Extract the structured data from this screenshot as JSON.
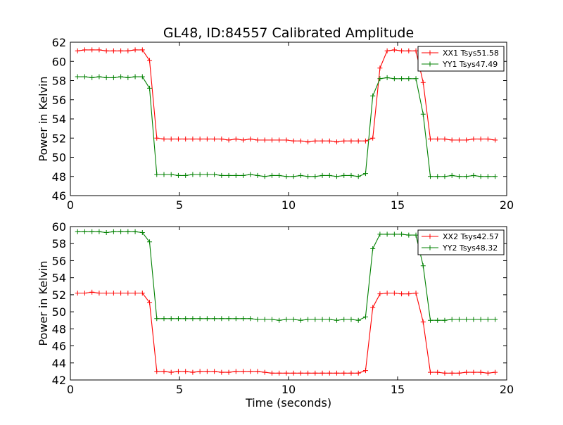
{
  "figure": {
    "title": "GL48, ID:84557 Calibrated Amplitude",
    "xlabel": "Time (seconds)"
  },
  "chart_data": [
    {
      "type": "line",
      "title": "GL48, ID:84557 Calibrated Amplitude",
      "xlabel": "",
      "ylabel": "Power in Kelvin",
      "xlim": [
        0,
        20
      ],
      "ylim": [
        46,
        62
      ],
      "xticks": [
        0,
        5,
        10,
        15,
        20
      ],
      "yticks": [
        46,
        48,
        50,
        52,
        54,
        56,
        58,
        60,
        62
      ],
      "grid": false,
      "legend": "top-right",
      "x": [
        0.33,
        0.66,
        0.99,
        1.32,
        1.65,
        1.98,
        2.31,
        2.64,
        2.97,
        3.3,
        3.63,
        3.96,
        4.29,
        4.62,
        4.95,
        5.28,
        5.61,
        5.94,
        6.27,
        6.6,
        6.93,
        7.26,
        7.59,
        7.92,
        8.25,
        8.58,
        8.91,
        9.24,
        9.57,
        9.9,
        10.23,
        10.56,
        10.89,
        11.22,
        11.55,
        11.88,
        12.21,
        12.54,
        12.87,
        13.2,
        13.53,
        13.86,
        14.19,
        14.52,
        14.85,
        15.18,
        15.51,
        15.84,
        16.17,
        16.5,
        16.83,
        17.16,
        17.49,
        17.82,
        18.15,
        18.48,
        18.81,
        19.14,
        19.47
      ],
      "series": [
        {
          "name": "XX1 Tsys51.58",
          "color": "#ff0000",
          "values": [
            61.1,
            61.2,
            61.2,
            61.2,
            61.1,
            61.1,
            61.1,
            61.1,
            61.2,
            61.2,
            60.1,
            52.0,
            51.9,
            51.9,
            51.9,
            51.9,
            51.9,
            51.9,
            51.9,
            51.9,
            51.9,
            51.8,
            51.9,
            51.8,
            51.9,
            51.8,
            51.8,
            51.8,
            51.8,
            51.8,
            51.7,
            51.7,
            51.6,
            51.7,
            51.7,
            51.7,
            51.6,
            51.7,
            51.7,
            51.7,
            51.7,
            52.0,
            59.3,
            61.1,
            61.2,
            61.1,
            61.1,
            61.1,
            57.8,
            51.9,
            51.9,
            51.9,
            51.8,
            51.8,
            51.8,
            51.9,
            51.9,
            51.9,
            51.8
          ]
        },
        {
          "name": "YY1 Tsys47.49",
          "color": "#008000",
          "values": [
            58.4,
            58.4,
            58.3,
            58.4,
            58.3,
            58.3,
            58.4,
            58.3,
            58.4,
            58.4,
            57.2,
            48.2,
            48.2,
            48.2,
            48.1,
            48.1,
            48.2,
            48.2,
            48.2,
            48.2,
            48.1,
            48.1,
            48.1,
            48.1,
            48.2,
            48.1,
            48.0,
            48.1,
            48.1,
            48.0,
            48.0,
            48.1,
            48.0,
            48.0,
            48.1,
            48.1,
            48.0,
            48.1,
            48.1,
            48.0,
            48.3,
            56.4,
            58.2,
            58.3,
            58.2,
            58.2,
            58.2,
            58.2,
            54.5,
            48.0,
            48.0,
            48.0,
            48.1,
            48.0,
            48.0,
            48.1,
            48.0,
            48.0,
            48.0
          ]
        }
      ]
    },
    {
      "type": "line",
      "title": "",
      "xlabel": "Time (seconds)",
      "ylabel": "Power in Kelvin",
      "xlim": [
        0,
        20
      ],
      "ylim": [
        42,
        60
      ],
      "xticks": [
        0,
        5,
        10,
        15,
        20
      ],
      "yticks": [
        42,
        44,
        46,
        48,
        50,
        52,
        54,
        56,
        58,
        60
      ],
      "grid": false,
      "legend": "top-right",
      "x": [
        0.33,
        0.66,
        0.99,
        1.32,
        1.65,
        1.98,
        2.31,
        2.64,
        2.97,
        3.3,
        3.63,
        3.96,
        4.29,
        4.62,
        4.95,
        5.28,
        5.61,
        5.94,
        6.27,
        6.6,
        6.93,
        7.26,
        7.59,
        7.92,
        8.25,
        8.58,
        8.91,
        9.24,
        9.57,
        9.9,
        10.23,
        10.56,
        10.89,
        11.22,
        11.55,
        11.88,
        12.21,
        12.54,
        12.87,
        13.2,
        13.53,
        13.86,
        14.19,
        14.52,
        14.85,
        15.18,
        15.51,
        15.84,
        16.17,
        16.5,
        16.83,
        17.16,
        17.49,
        17.82,
        18.15,
        18.48,
        18.81,
        19.14,
        19.47
      ],
      "series": [
        {
          "name": "XX2 Tsys42.57",
          "color": "#ff0000",
          "values": [
            52.2,
            52.2,
            52.3,
            52.2,
            52.2,
            52.2,
            52.2,
            52.2,
            52.2,
            52.2,
            51.1,
            43.0,
            43.0,
            42.9,
            43.0,
            43.0,
            42.9,
            43.0,
            43.0,
            43.0,
            42.9,
            42.9,
            43.0,
            43.0,
            43.0,
            43.0,
            42.9,
            42.8,
            42.8,
            42.8,
            42.8,
            42.8,
            42.8,
            42.8,
            42.8,
            42.8,
            42.8,
            42.8,
            42.8,
            42.8,
            43.1,
            50.5,
            52.1,
            52.2,
            52.2,
            52.1,
            52.1,
            52.2,
            48.8,
            42.9,
            42.9,
            42.8,
            42.8,
            42.8,
            42.9,
            42.9,
            42.9,
            42.8,
            42.9
          ]
        },
        {
          "name": "YY2 Tsys48.32",
          "color": "#008000",
          "values": [
            59.4,
            59.4,
            59.4,
            59.4,
            59.3,
            59.4,
            59.4,
            59.4,
            59.4,
            59.3,
            58.2,
            49.2,
            49.2,
            49.2,
            49.2,
            49.2,
            49.2,
            49.2,
            49.2,
            49.2,
            49.2,
            49.2,
            49.2,
            49.2,
            49.2,
            49.1,
            49.1,
            49.1,
            49.0,
            49.1,
            49.1,
            49.0,
            49.1,
            49.1,
            49.1,
            49.1,
            49.0,
            49.1,
            49.1,
            49.0,
            49.4,
            57.4,
            59.1,
            59.1,
            59.1,
            59.1,
            59.0,
            59.0,
            55.4,
            49.0,
            49.0,
            49.0,
            49.1,
            49.1,
            49.1,
            49.1,
            49.1,
            49.1,
            49.1
          ]
        }
      ]
    }
  ]
}
